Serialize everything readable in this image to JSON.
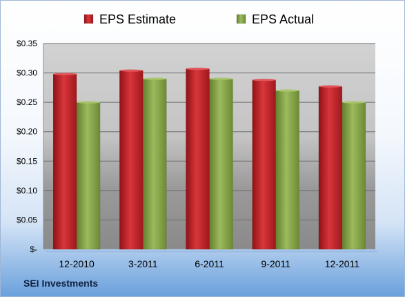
{
  "chart_data": {
    "type": "bar",
    "categories": [
      "12-2010",
      "3-2011",
      "6-2011",
      "9-2011",
      "12-2011"
    ],
    "series": [
      {
        "name": "EPS Estimate",
        "color": "#c0272d",
        "values": [
          0.298,
          0.304,
          0.307,
          0.288,
          0.277
        ]
      },
      {
        "name": "EPS Actual",
        "color": "#8ca94e",
        "values": [
          0.25,
          0.29,
          0.29,
          0.27,
          0.25
        ]
      }
    ],
    "y_ticks": [
      {
        "value": 0,
        "label": "$-"
      },
      {
        "value": 0.05,
        "label": "$0.05"
      },
      {
        "value": 0.1,
        "label": "$0.10"
      },
      {
        "value": 0.15,
        "label": "$0.15"
      },
      {
        "value": 0.2,
        "label": "$0.20"
      },
      {
        "value": 0.25,
        "label": "$0.25"
      },
      {
        "value": 0.3,
        "label": "$0.30"
      },
      {
        "value": 0.35,
        "label": "$0.35"
      }
    ],
    "ylim": [
      0,
      0.35
    ],
    "grid": true,
    "legend_position": "top"
  },
  "footer": {
    "company": "SEI Investments"
  }
}
